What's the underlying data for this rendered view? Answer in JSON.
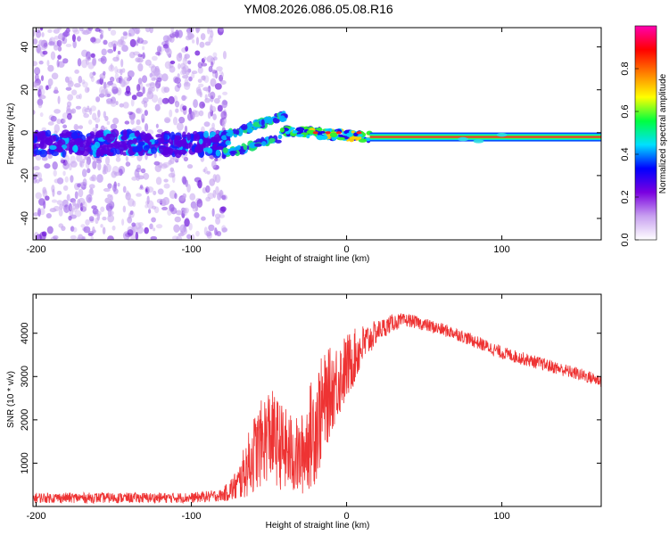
{
  "title": "YM08.2026.086.05.08.R16",
  "chart_data": [
    {
      "type": "heatmap",
      "name": "spectrogram",
      "xlabel": "Height of straight line (km)",
      "ylabel": "Frequency (Hz)",
      "xlim": [
        -202,
        164
      ],
      "ylim": [
        -50,
        49
      ],
      "xticks": [
        -200,
        -100,
        0,
        100
      ],
      "yticks": [
        -40,
        -20,
        0,
        20,
        40
      ],
      "xtick_labels": [
        "-200",
        "-100",
        "0",
        "100"
      ],
      "ytick_labels": [
        "-40",
        "-20",
        "0",
        "20",
        "40"
      ],
      "colorbar": {
        "label": "Normalized spectral amplitude",
        "range": [
          0,
          1
        ],
        "ticks": [
          0.0,
          0.2,
          0.4,
          0.6,
          0.8
        ],
        "tick_labels": [
          "0.0",
          "0.2",
          "0.4",
          "0.6",
          "0.8"
        ],
        "colors": [
          "#ffffff",
          "#c8a0f0",
          "#7a00e0",
          "#0000ff",
          "#00e0ff",
          "#00ff40",
          "#ffff00",
          "#ff8000",
          "#ff0000",
          "#ff00b0"
        ]
      },
      "description_of_features": {
        "noise_region_x": [
          -202,
          -78
        ],
        "band_center_hz": -5,
        "line_segment_x": [
          15,
          164
        ],
        "line_center_hz": -2
      }
    },
    {
      "type": "line",
      "name": "snr",
      "xlabel": "Height of straight line (km)",
      "ylabel": "SNR (10 * v/v)",
      "xlim": [
        -202,
        164
      ],
      "ylim": [
        0,
        4900
      ],
      "xticks": [
        -200,
        -100,
        0,
        100
      ],
      "yticks": [
        1000,
        2000,
        3000,
        4000
      ],
      "xtick_labels": [
        "-200",
        "-100",
        "0",
        "100"
      ],
      "ytick_labels": [
        "1000",
        "2000",
        "3000",
        "4000"
      ],
      "color": "#ee3333",
      "envelope_x": [
        -202,
        -100,
        -80,
        -70,
        -60,
        -50,
        -40,
        -30,
        -20,
        -10,
        0,
        10,
        20,
        30,
        40,
        50,
        60,
        70,
        80,
        90,
        100,
        110,
        120,
        130,
        140,
        150,
        164
      ],
      "envelope_y": [
        200,
        200,
        260,
        500,
        1200,
        1700,
        1300,
        1100,
        1900,
        2700,
        3200,
        3700,
        4050,
        4250,
        4300,
        4200,
        4100,
        4000,
        3850,
        3700,
        3550,
        3450,
        3350,
        3250,
        3150,
        3050,
        2900
      ],
      "noise_amplitude": [
        120,
        120,
        140,
        400,
        900,
        1100,
        1000,
        900,
        1400,
        1000,
        800,
        500,
        250,
        200,
        150,
        150,
        150,
        150,
        150,
        150,
        150,
        150,
        150,
        150,
        150,
        150,
        150
      ]
    }
  ]
}
